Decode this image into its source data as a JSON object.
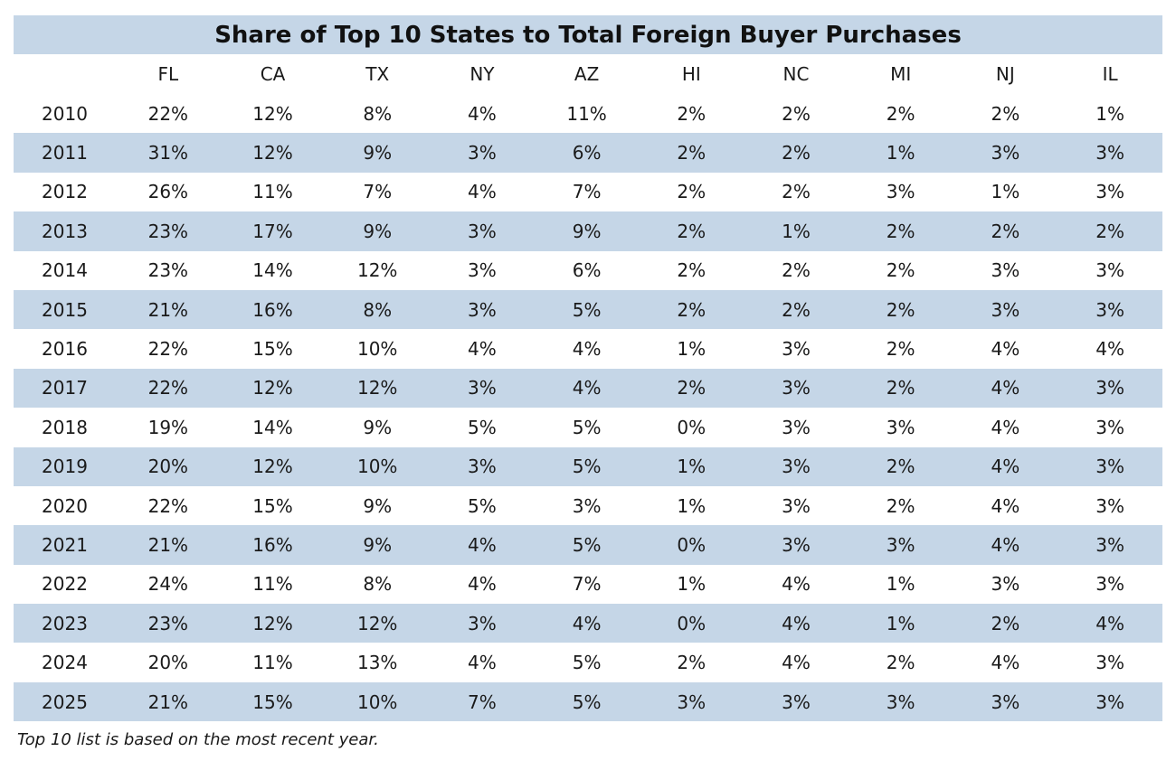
{
  "chart_data": {
    "type": "table",
    "title": "Share of Top 10 States to Total Foreign Buyer Purchases",
    "columns": [
      "",
      "FL",
      "CA",
      "TX",
      "NY",
      "AZ",
      "HI",
      "NC",
      "MI",
      "NJ",
      "IL"
    ],
    "rows": [
      {
        "year": "2010",
        "values": [
          "22%",
          "12%",
          "8%",
          "4%",
          "11%",
          "2%",
          "2%",
          "2%",
          "2%",
          "1%"
        ]
      },
      {
        "year": "2011",
        "values": [
          "31%",
          "12%",
          "9%",
          "3%",
          "6%",
          "2%",
          "2%",
          "1%",
          "3%",
          "3%"
        ]
      },
      {
        "year": "2012",
        "values": [
          "26%",
          "11%",
          "7%",
          "4%",
          "7%",
          "2%",
          "2%",
          "3%",
          "1%",
          "3%"
        ]
      },
      {
        "year": "2013",
        "values": [
          "23%",
          "17%",
          "9%",
          "3%",
          "9%",
          "2%",
          "1%",
          "2%",
          "2%",
          "2%"
        ]
      },
      {
        "year": "2014",
        "values": [
          "23%",
          "14%",
          "12%",
          "3%",
          "6%",
          "2%",
          "2%",
          "2%",
          "3%",
          "3%"
        ]
      },
      {
        "year": "2015",
        "values": [
          "21%",
          "16%",
          "8%",
          "3%",
          "5%",
          "2%",
          "2%",
          "2%",
          "3%",
          "3%"
        ]
      },
      {
        "year": "2016",
        "values": [
          "22%",
          "15%",
          "10%",
          "4%",
          "4%",
          "1%",
          "3%",
          "2%",
          "4%",
          "4%"
        ]
      },
      {
        "year": "2017",
        "values": [
          "22%",
          "12%",
          "12%",
          "3%",
          "4%",
          "2%",
          "3%",
          "2%",
          "4%",
          "3%"
        ]
      },
      {
        "year": "2018",
        "values": [
          "19%",
          "14%",
          "9%",
          "5%",
          "5%",
          "0%",
          "3%",
          "3%",
          "4%",
          "3%"
        ]
      },
      {
        "year": "2019",
        "values": [
          "20%",
          "12%",
          "10%",
          "3%",
          "5%",
          "1%",
          "3%",
          "2%",
          "4%",
          "3%"
        ]
      },
      {
        "year": "2020",
        "values": [
          "22%",
          "15%",
          "9%",
          "5%",
          "3%",
          "1%",
          "3%",
          "2%",
          "4%",
          "3%"
        ]
      },
      {
        "year": "2021",
        "values": [
          "21%",
          "16%",
          "9%",
          "4%",
          "5%",
          "0%",
          "3%",
          "3%",
          "4%",
          "3%"
        ]
      },
      {
        "year": "2022",
        "values": [
          "24%",
          "11%",
          "8%",
          "4%",
          "7%",
          "1%",
          "4%",
          "1%",
          "3%",
          "3%"
        ]
      },
      {
        "year": "2023",
        "values": [
          "23%",
          "12%",
          "12%",
          "3%",
          "4%",
          "0%",
          "4%",
          "1%",
          "2%",
          "4%"
        ]
      },
      {
        "year": "2024",
        "values": [
          "20%",
          "11%",
          "13%",
          "4%",
          "5%",
          "2%",
          "4%",
          "2%",
          "4%",
          "3%"
        ]
      },
      {
        "year": "2025",
        "values": [
          "21%",
          "15%",
          "10%",
          "7%",
          "5%",
          "3%",
          "3%",
          "3%",
          "3%",
          "3%"
        ]
      }
    ],
    "footnote": "Top 10 list is based on the most recent year.",
    "colors": {
      "band": "#c5d6e7",
      "text": "#1a1a1a"
    }
  }
}
